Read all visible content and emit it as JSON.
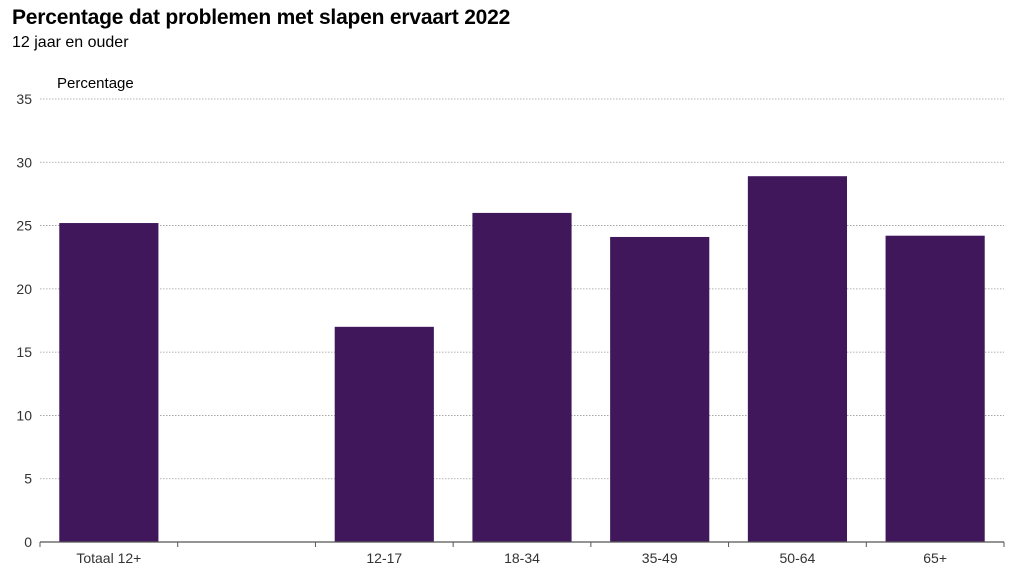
{
  "chart_data": {
    "type": "bar",
    "title": "Percentage dat problemen met slapen ervaart 2022",
    "subtitle": "12 jaar en ouder",
    "ylabel": "Percentage",
    "xlabel": "",
    "categories": [
      "Totaal 12+",
      "",
      "12-17",
      "18-34",
      "35-49",
      "50-64",
      "65+"
    ],
    "values": [
      25.2,
      null,
      17.0,
      26.0,
      24.1,
      28.9,
      24.2
    ],
    "ylim": [
      0,
      35
    ],
    "yticks": [
      0,
      5,
      10,
      15,
      20,
      25,
      30,
      35
    ],
    "grid": true,
    "bar_color": "#40175a",
    "legend": "none"
  }
}
